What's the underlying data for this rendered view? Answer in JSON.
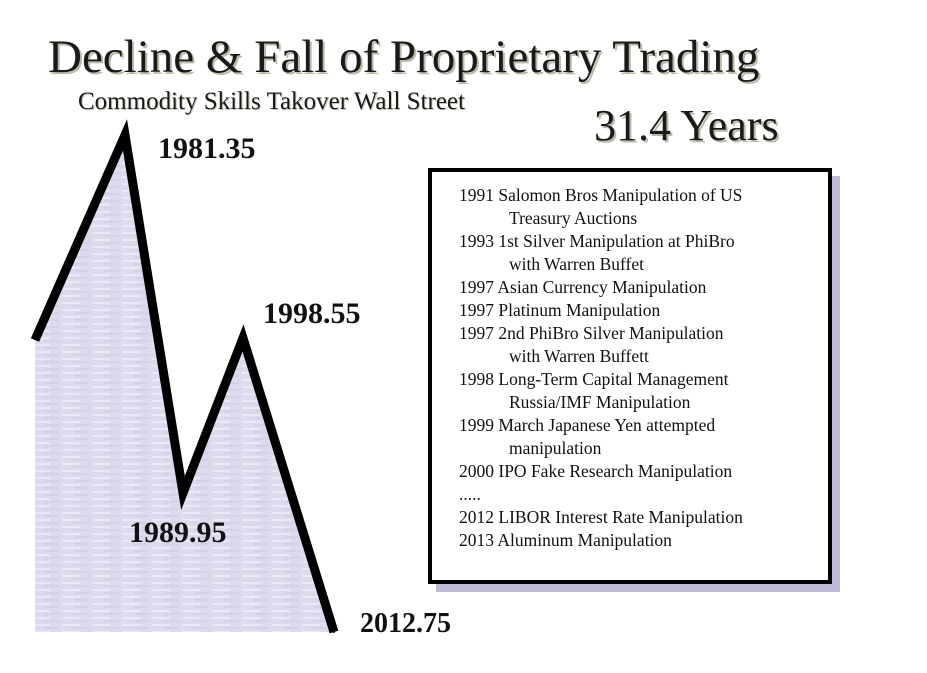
{
  "title": "Decline & Fall of Proprietary Trading",
  "subtitle": "Commodity Skills Takover Wall Street",
  "duration": "31.4 Years",
  "colors": {
    "fill": "#dcdbee",
    "line": "#000000",
    "box_shadow": "#bdbbd8"
  },
  "chart_data": {
    "type": "line",
    "points": [
      {
        "label": "1981.35",
        "x": 1981.35
      },
      {
        "label": "1989.95",
        "x": 1989.95
      },
      {
        "label": "1998.55",
        "x": 1998.55
      },
      {
        "label": "2012.75",
        "x": 2012.75
      }
    ]
  },
  "events": [
    {
      "lines": [
        "1991 Salomon Bros Manipulation of US",
        "Treasury Auctions"
      ]
    },
    {
      "lines": [
        "1993 1st Silver Manipulation at PhiBro",
        "with Warren Buffet"
      ]
    },
    {
      "lines": [
        "1997 Asian Currency Manipulation"
      ]
    },
    {
      "lines": [
        "1997 Platinum Manipulation"
      ]
    },
    {
      "lines": [
        "1997 2nd PhiBro Silver Manipulation",
        "with Warren Buffett"
      ]
    },
    {
      "lines": [
        "1998 Long-Term Capital Management",
        "Russia/IMF Manipulation"
      ]
    },
    {
      "lines": [
        "1999 March Japanese Yen attempted",
        "manipulation"
      ]
    },
    {
      "lines": [
        "2000 IPO Fake Research Manipulation"
      ]
    },
    {
      "lines": [
        "....."
      ]
    },
    {
      "lines": [
        "2012 LIBOR Interest Rate Manipulation"
      ]
    },
    {
      "lines": [
        "2013 Aluminum Manipulation"
      ]
    }
  ]
}
